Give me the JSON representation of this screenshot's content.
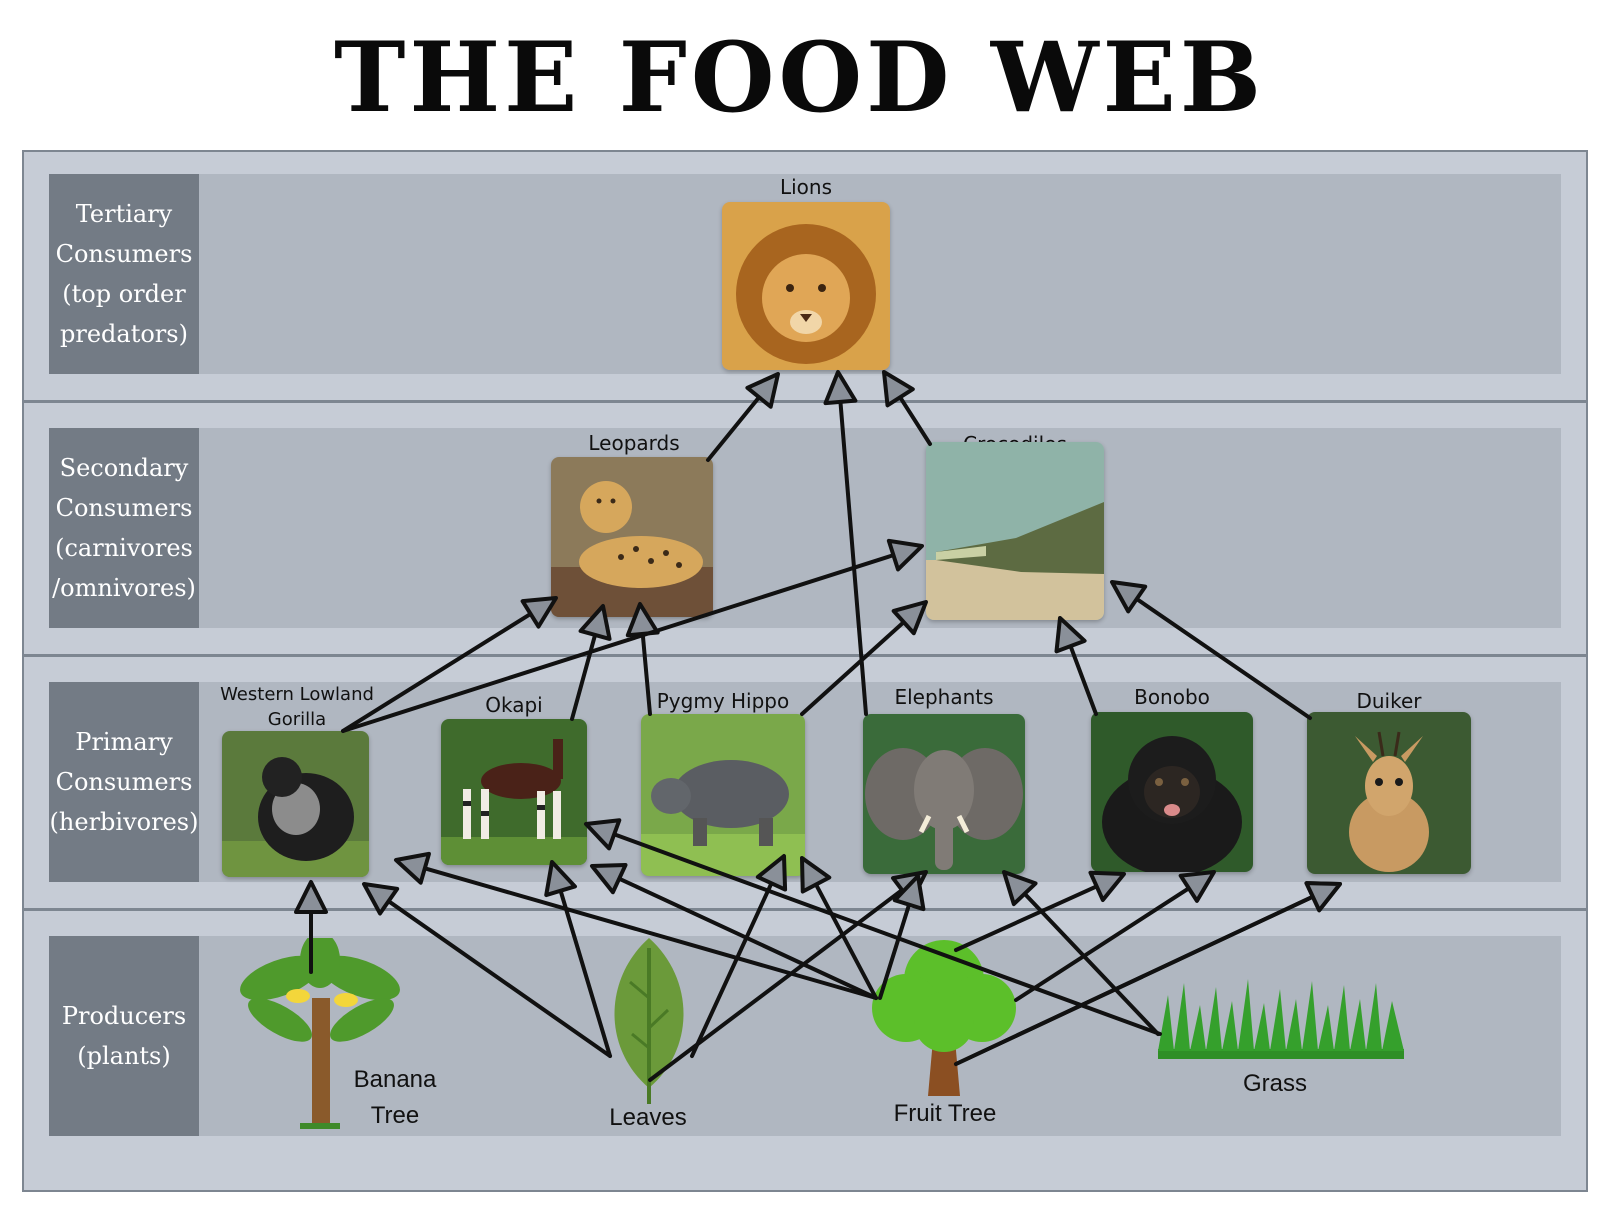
{
  "title": "THE FOOD WEB",
  "levels": {
    "tertiary": [
      "Tertiary",
      "Consumers",
      "(top order",
      "predators)"
    ],
    "secondary": [
      "Secondary",
      "Consumers",
      "(carnivores",
      "/omnivores)"
    ],
    "primary": [
      "Primary",
      "Consumers",
      "(herbivores)"
    ],
    "producers": [
      "Producers",
      "(plants)"
    ]
  },
  "organisms": {
    "lions": "Lions",
    "leopards": "Leopards",
    "crocodiles": "Crocodiles",
    "gorilla": [
      "Western Lowland",
      "Gorilla"
    ],
    "okapi": "Okapi",
    "hippo": "Pygmy Hippo",
    "elephants": "Elephants",
    "bonobo": "Bonobo",
    "duiker": "Duiker",
    "banana": [
      "Banana",
      "Tree"
    ],
    "leaves": "Leaves",
    "fruit_tree": "Fruit Tree",
    "grass": "Grass"
  },
  "links": [
    [
      "leopards",
      "lions"
    ],
    [
      "elephants",
      "lions"
    ],
    [
      "crocodiles",
      "lions"
    ],
    [
      "gorilla",
      "leopards"
    ],
    [
      "okapi",
      "leopards"
    ],
    [
      "hippo",
      "leopards"
    ],
    [
      "gorilla",
      "crocodiles"
    ],
    [
      "hippo",
      "crocodiles"
    ],
    [
      "bonobo",
      "crocodiles"
    ],
    [
      "duiker",
      "crocodiles"
    ],
    [
      "banana",
      "gorilla"
    ],
    [
      "leaves",
      "gorilla"
    ],
    [
      "leaves",
      "okapi"
    ],
    [
      "leaves",
      "hippo"
    ],
    [
      "leaves",
      "elephants"
    ],
    [
      "fruit_tree",
      "gorilla"
    ],
    [
      "fruit_tree",
      "okapi"
    ],
    [
      "fruit_tree",
      "hippo"
    ],
    [
      "fruit_tree",
      "elephants"
    ],
    [
      "fruit_tree",
      "bonobo"
    ],
    [
      "fruit_tree",
      "duiker"
    ],
    [
      "grass",
      "okapi"
    ],
    [
      "grass",
      "elephants"
    ],
    [
      "grass",
      "bonobo"
    ],
    [
      "grass",
      "duiker"
    ]
  ]
}
